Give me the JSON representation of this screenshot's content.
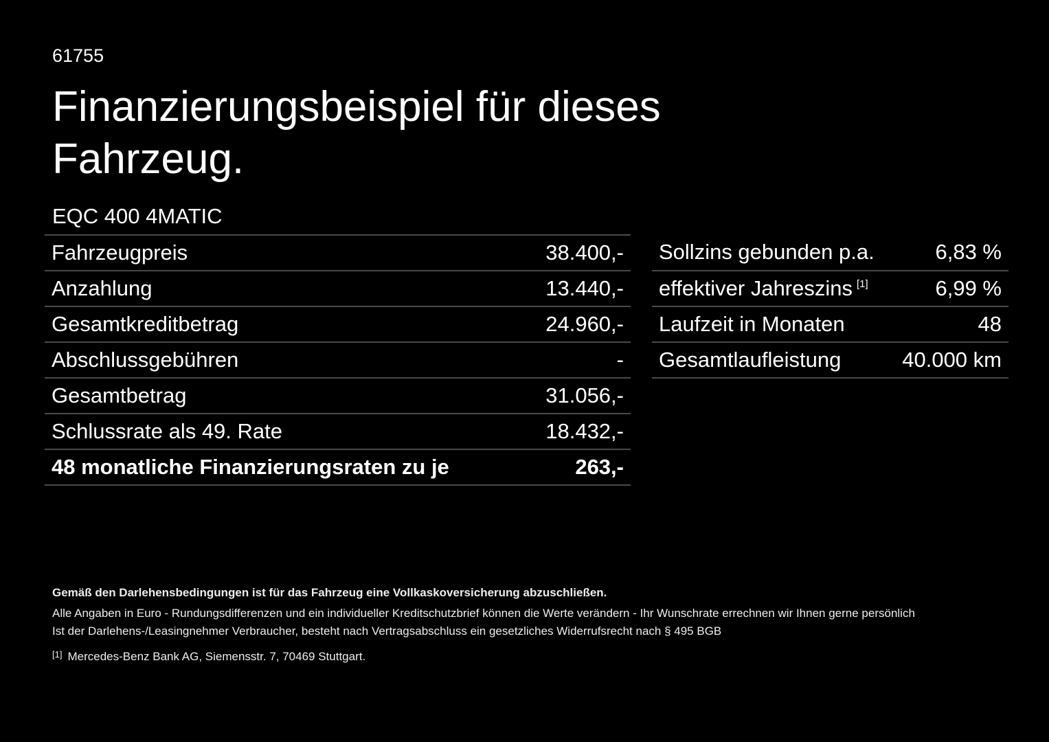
{
  "code": "61755",
  "title": "Finanzierungsbeispiel für dieses Fahrzeug.",
  "model": "EQC 400 4MATIC",
  "left_table": [
    {
      "label": "Fahrzeugpreis",
      "value": "38.400,-"
    },
    {
      "label": "Anzahlung",
      "value": "13.440,-"
    },
    {
      "label": "Gesamtkreditbetrag",
      "value": "24.960,-"
    },
    {
      "label": "Abschlussgebühren",
      "value": "-"
    },
    {
      "label": "Gesamtbetrag",
      "value": "31.056,-"
    },
    {
      "label": "Schlussrate als 49. Rate",
      "value": "18.432,-"
    },
    {
      "label": "48 monatliche Finanzierungsraten zu je",
      "value": "263,-"
    }
  ],
  "right_table": [
    {
      "label": "Sollzins gebunden p.a.",
      "value": "6,83 %"
    },
    {
      "label": "effektiver Jahreszins",
      "sup": "[1]",
      "value": "6,99 %"
    },
    {
      "label": "Laufzeit in Monaten",
      "value": "48"
    },
    {
      "label": "Gesamtlaufleistung",
      "value": "40.000 km"
    }
  ],
  "footer": {
    "insurance_note": "Gemäß den Darlehensbedingungen ist für das Fahrzeug eine Vollkaskoversicherung abzuschließen.",
    "line1": "Alle Angaben in Euro - Rundungsdifferenzen und ein individueller Kreditschutzbrief können die Werte verändern - Ihr Wunschrate errechnen wir Ihnen gerne persönlich",
    "line2": "Ist der Darlehens-/Leasingnehmer Verbraucher, besteht nach Vertragsabschluss ein gesetzliches Widerrufsrecht nach § 495 BGB",
    "footnote_ref": "[1]",
    "footnote": "Mercedes-Benz Bank AG, Siemensstr. 7, 70469 Stuttgart."
  }
}
